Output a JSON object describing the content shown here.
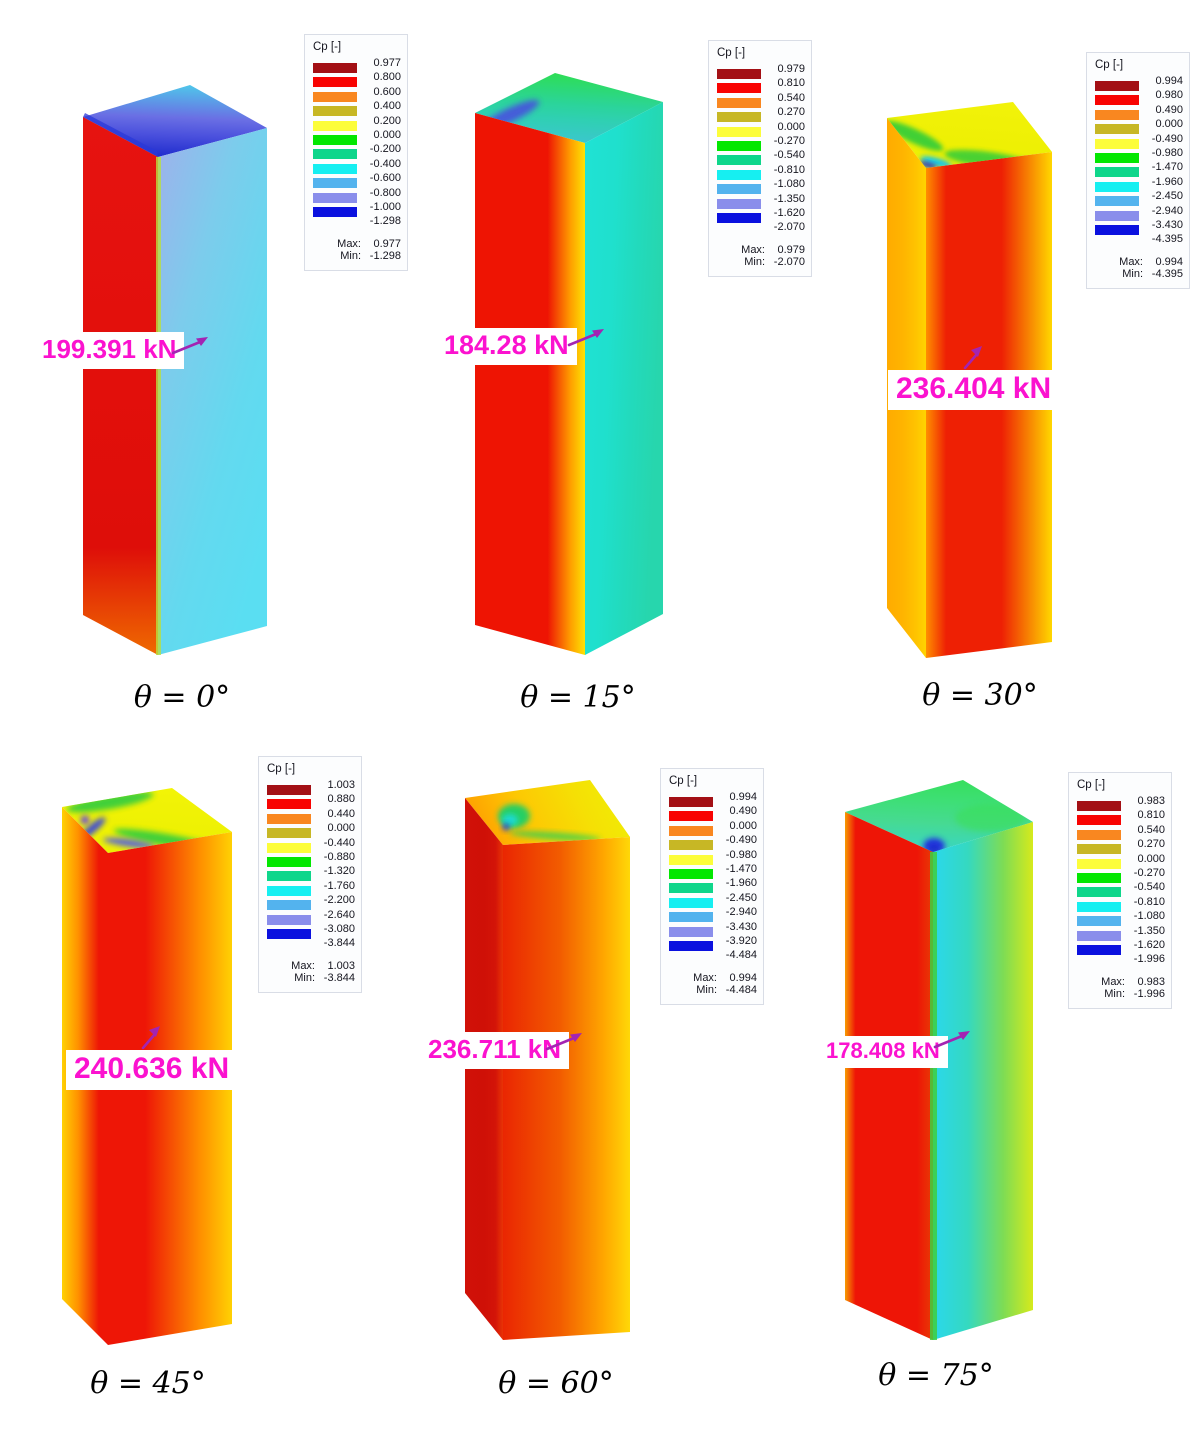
{
  "colors": {
    "force_label": "#fb12cf",
    "arrow": "#a324b2",
    "legend_border": "#d9dde6",
    "legend_bg": "#fcfdfe",
    "legend_text": "#15151f"
  },
  "labels": {
    "max": "Max:",
    "min": "Min:"
  },
  "legend_colormap": [
    "#a31015",
    "#f80302",
    "#f98720",
    "#c7b725",
    "#fcfd3a",
    "#02e701",
    "#0ed68b",
    "#16eff1",
    "#53b3ee",
    "#8a8eeb",
    "#0b11df"
  ],
  "panels": [
    {
      "theta": "θ = 0°",
      "force": "199.391 kN",
      "legend": {
        "title": "Cp [-]",
        "values": [
          "0.977",
          "0.800",
          "0.600",
          "0.400",
          "0.200",
          "0.000",
          "-0.200",
          "-0.400",
          "-0.600",
          "-0.800",
          "-1.000",
          "-1.298"
        ],
        "max": "0.977",
        "min": "-1.298"
      },
      "face_colors": {
        "left": [
          "#e61310",
          "#e20f0b",
          "#de0e09",
          "#ef6a00"
        ],
        "right": [
          "#9fb0eb",
          "#7cccec",
          "#63d9ef",
          "#5adef2"
        ],
        "top": [
          "#1f2ccd",
          "#4a50dd",
          "#6a6fe4",
          "#4fc6ea"
        ]
      }
    },
    {
      "theta": "θ = 15°",
      "force": "184.28 kN",
      "legend": {
        "title": "Cp [-]",
        "values": [
          "0.979",
          "0.810",
          "0.540",
          "0.270",
          "0.000",
          "-0.270",
          "-0.540",
          "-0.810",
          "-1.080",
          "-1.350",
          "-1.620",
          "-2.070"
        ],
        "max": "0.979",
        "min": "-2.070"
      },
      "face_colors": {
        "left": [
          "#ee1403",
          "#ee1403",
          "#ff9f00",
          "#fce303"
        ],
        "right": [
          "#1fe2d5",
          "#1fe0cd",
          "#22dabc",
          "#27d6ad"
        ],
        "top": [
          "#3cc6cf",
          "#2fd0b2",
          "#2bd49b",
          "#2ede52"
        ]
      }
    },
    {
      "theta": "θ = 30°",
      "force": "236.404 kN",
      "legend": {
        "title": "Cp [-]",
        "values": [
          "0.994",
          "0.980",
          "0.490",
          "0.000",
          "-0.490",
          "-0.980",
          "-1.470",
          "-1.960",
          "-2.450",
          "-2.940",
          "-3.430",
          "-4.395"
        ],
        "max": "0.994",
        "min": "-4.395"
      },
      "face_colors": {
        "left": [
          "#ffab00",
          "#ffb400",
          "#ffc100",
          "#ffd400"
        ],
        "right": [
          "#ff9000",
          "#ee2004",
          "#ee2004",
          "#ffd800"
        ],
        "top": [
          "#e9ef04",
          "#eef004",
          "#f0f106",
          "#f2f20a"
        ]
      }
    },
    {
      "theta": "θ = 45°",
      "force": "240.636 kN",
      "legend": {
        "title": "Cp [-]",
        "values": [
          "1.003",
          "0.880",
          "0.440",
          "0.000",
          "-0.440",
          "-0.880",
          "-1.320",
          "-1.760",
          "-2.200",
          "-2.640",
          "-3.080",
          "-3.844"
        ],
        "max": "1.003",
        "min": "-3.844"
      },
      "face_colors": {
        "left": [
          "#ffd103",
          "#ff9100",
          "#ee1606",
          "#ee1606"
        ],
        "right": [
          "#ee1606",
          "#ee1606",
          "#ff9100",
          "#ffd103"
        ],
        "top": [
          "#ecf003",
          "#eef103",
          "#f0f205",
          "#f2f407"
        ]
      }
    },
    {
      "theta": "θ = 60°",
      "force": "236.711 kN",
      "legend": {
        "title": "Cp [-]",
        "values": [
          "0.994",
          "0.490",
          "0.000",
          "-0.490",
          "-0.980",
          "-1.470",
          "-1.960",
          "-2.450",
          "-2.940",
          "-3.430",
          "-3.920",
          "-4.484"
        ],
        "max": "0.994",
        "min": "-4.484"
      },
      "face_colors": {
        "left": [
          "#d01108",
          "#cf1007",
          "#d31408",
          "#e83305"
        ],
        "right": [
          "#ea2602",
          "#f25c00",
          "#ffa800",
          "#ffd808"
        ],
        "top": [
          "#ff9d00",
          "#fdc803",
          "#f5e005",
          "#f0ee05"
        ]
      }
    },
    {
      "theta": "θ = 75°",
      "force": "178.408 kN",
      "legend": {
        "title": "Cp [-]",
        "values": [
          "0.983",
          "0.810",
          "0.540",
          "0.270",
          "0.000",
          "-0.270",
          "-0.540",
          "-0.810",
          "-1.080",
          "-1.350",
          "-1.620",
          "-1.996"
        ],
        "max": "0.983",
        "min": "-1.996"
      },
      "face_colors": {
        "left": [
          "#f79b02",
          "#ee1506",
          "#ee1506",
          "#e83b05"
        ],
        "right": [
          "#2ad7ec",
          "#35d9c0",
          "#7ddc55",
          "#d6ea1c"
        ],
        "top": [
          "#38d6c5",
          "#46da92",
          "#3edf76",
          "#37df5e"
        ]
      }
    }
  ],
  "chart_data": {
    "type": "heatmap",
    "title": "",
    "colorbar_label": "Cp [-]",
    "colormap_colors": [
      "#a31015",
      "#f80302",
      "#f98720",
      "#c7b725",
      "#fcfd3a",
      "#02e701",
      "#0ed68b",
      "#16eff1",
      "#53b3ee",
      "#8a8eeb",
      "#0b11df"
    ],
    "series": [
      {
        "name": "θ = 0°",
        "wind_angle_deg": 0,
        "resultant_force_kN": 199.391,
        "cp_max": 0.977,
        "cp_min": -1.298,
        "colorbar_ticks": [
          0.977,
          0.8,
          0.6,
          0.4,
          0.2,
          0.0,
          -0.2,
          -0.4,
          -0.6,
          -0.8,
          -1.0,
          -1.298
        ]
      },
      {
        "name": "θ = 15°",
        "wind_angle_deg": 15,
        "resultant_force_kN": 184.28,
        "cp_max": 0.979,
        "cp_min": -2.07,
        "colorbar_ticks": [
          0.979,
          0.81,
          0.54,
          0.27,
          0.0,
          -0.27,
          -0.54,
          -0.81,
          -1.08,
          -1.35,
          -1.62,
          -2.07
        ]
      },
      {
        "name": "θ = 30°",
        "wind_angle_deg": 30,
        "resultant_force_kN": 236.404,
        "cp_max": 0.994,
        "cp_min": -4.395,
        "colorbar_ticks": [
          0.994,
          0.98,
          0.49,
          0.0,
          -0.49,
          -0.98,
          -1.47,
          -1.96,
          -2.45,
          -2.94,
          -3.43,
          -4.395
        ]
      },
      {
        "name": "θ = 45°",
        "wind_angle_deg": 45,
        "resultant_force_kN": 240.636,
        "cp_max": 1.003,
        "cp_min": -3.844,
        "colorbar_ticks": [
          1.003,
          0.88,
          0.44,
          0.0,
          -0.44,
          -0.88,
          -1.32,
          -1.76,
          -2.2,
          -2.64,
          -3.08,
          -3.844
        ]
      },
      {
        "name": "θ = 60°",
        "wind_angle_deg": 60,
        "resultant_force_kN": 236.711,
        "cp_max": 0.994,
        "cp_min": -4.484,
        "colorbar_ticks": [
          0.994,
          0.49,
          0.0,
          -0.49,
          -0.98,
          -1.47,
          -1.96,
          -2.45,
          -2.94,
          -3.43,
          -3.92,
          -4.484
        ]
      },
      {
        "name": "θ = 75°",
        "wind_angle_deg": 75,
        "resultant_force_kN": 178.408,
        "cp_max": 0.983,
        "cp_min": -1.996,
        "colorbar_ticks": [
          0.983,
          0.81,
          0.54,
          0.27,
          0.0,
          -0.27,
          -0.54,
          -0.81,
          -1.08,
          -1.35,
          -1.62,
          -1.996
        ]
      }
    ]
  }
}
